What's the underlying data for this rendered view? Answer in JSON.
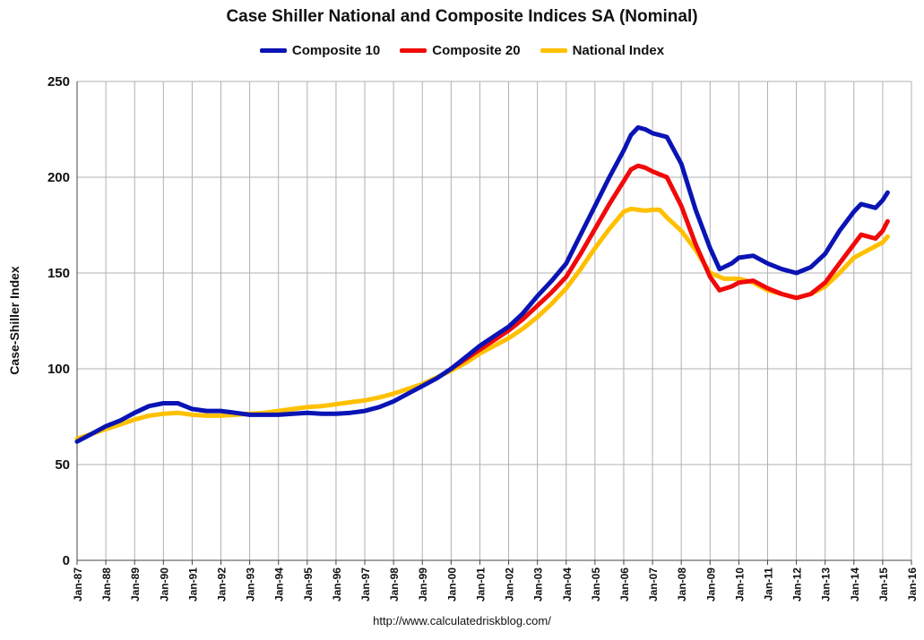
{
  "chart_data": {
    "type": "line",
    "title": "Case Shiller National and Composite Indices SA (Nominal)",
    "ylabel": "Case-Shiller Index",
    "xlabel": "",
    "source": "http://www.calculatedriskblog.com/",
    "ylim": [
      0,
      250
    ],
    "yticks": [
      0,
      50,
      100,
      150,
      200,
      250
    ],
    "xlim": [
      1987,
      2016
    ],
    "xticks": [
      "Jan-87",
      "Jan-88",
      "Jan-89",
      "Jan-90",
      "Jan-91",
      "Jan-92",
      "Jan-93",
      "Jan-94",
      "Jan-95",
      "Jan-96",
      "Jan-97",
      "Jan-98",
      "Jan-99",
      "Jan-00",
      "Jan-01",
      "Jan-02",
      "Jan-03",
      "Jan-04",
      "Jan-05",
      "Jan-06",
      "Jan-07",
      "Jan-08",
      "Jan-09",
      "Jan-10",
      "Jan-11",
      "Jan-12",
      "Jan-13",
      "Jan-14",
      "Jan-15",
      "Jan-16"
    ],
    "grid": true,
    "legend_position": "top",
    "series": [
      {
        "name": "Composite 10",
        "color": "#0a14b4",
        "points": [
          [
            1987.0,
            62
          ],
          [
            1987.5,
            66
          ],
          [
            1988.0,
            70
          ],
          [
            1988.5,
            73
          ],
          [
            1989.0,
            77
          ],
          [
            1989.5,
            80.5
          ],
          [
            1990.0,
            82
          ],
          [
            1990.5,
            82
          ],
          [
            1991.0,
            79
          ],
          [
            1991.5,
            78
          ],
          [
            1992.0,
            78
          ],
          [
            1992.5,
            77
          ],
          [
            1993.0,
            76
          ],
          [
            1993.5,
            76
          ],
          [
            1994.0,
            76
          ],
          [
            1994.5,
            76.5
          ],
          [
            1995.0,
            77
          ],
          [
            1995.5,
            76.5
          ],
          [
            1996.0,
            76.5
          ],
          [
            1996.5,
            77
          ],
          [
            1997.0,
            78
          ],
          [
            1997.5,
            80
          ],
          [
            1998.0,
            83
          ],
          [
            1998.5,
            87
          ],
          [
            1999.0,
            91
          ],
          [
            1999.5,
            95
          ],
          [
            2000.0,
            100
          ],
          [
            2000.5,
            106
          ],
          [
            2001.0,
            112
          ],
          [
            2001.5,
            117
          ],
          [
            2002.0,
            122
          ],
          [
            2002.5,
            129
          ],
          [
            2003.0,
            138
          ],
          [
            2003.5,
            146
          ],
          [
            2004.0,
            155
          ],
          [
            2004.5,
            170
          ],
          [
            2005.0,
            185
          ],
          [
            2005.5,
            200
          ],
          [
            2006.0,
            214
          ],
          [
            2006.25,
            222
          ],
          [
            2006.5,
            226
          ],
          [
            2006.75,
            225
          ],
          [
            2007.0,
            223
          ],
          [
            2007.5,
            221
          ],
          [
            2008.0,
            207
          ],
          [
            2008.5,
            183
          ],
          [
            2009.0,
            163
          ],
          [
            2009.33,
            152
          ],
          [
            2009.75,
            155
          ],
          [
            2010.0,
            158
          ],
          [
            2010.5,
            159
          ],
          [
            2011.0,
            155
          ],
          [
            2011.5,
            152
          ],
          [
            2012.0,
            150
          ],
          [
            2012.5,
            153
          ],
          [
            2013.0,
            160
          ],
          [
            2013.5,
            172
          ],
          [
            2014.0,
            182
          ],
          [
            2014.25,
            186
          ],
          [
            2014.5,
            185
          ],
          [
            2014.75,
            184
          ],
          [
            2015.0,
            188
          ],
          [
            2015.17,
            192
          ]
        ]
      },
      {
        "name": "Composite 20",
        "color": "#f00a0a",
        "points": [
          [
            2000.0,
            100
          ],
          [
            2000.5,
            105
          ],
          [
            2001.0,
            110
          ],
          [
            2001.5,
            115
          ],
          [
            2002.0,
            120
          ],
          [
            2002.5,
            126
          ],
          [
            2003.0,
            133
          ],
          [
            2003.5,
            140
          ],
          [
            2004.0,
            148
          ],
          [
            2004.5,
            160
          ],
          [
            2005.0,
            173
          ],
          [
            2005.5,
            186
          ],
          [
            2006.0,
            198
          ],
          [
            2006.25,
            204
          ],
          [
            2006.5,
            206
          ],
          [
            2006.75,
            205
          ],
          [
            2007.0,
            203
          ],
          [
            2007.5,
            200
          ],
          [
            2008.0,
            185
          ],
          [
            2008.5,
            165
          ],
          [
            2009.0,
            148
          ],
          [
            2009.33,
            141
          ],
          [
            2009.75,
            143
          ],
          [
            2010.0,
            145
          ],
          [
            2010.5,
            146
          ],
          [
            2011.0,
            142
          ],
          [
            2011.5,
            139
          ],
          [
            2012.0,
            137
          ],
          [
            2012.5,
            139
          ],
          [
            2013.0,
            145
          ],
          [
            2013.5,
            155
          ],
          [
            2014.0,
            165
          ],
          [
            2014.25,
            170
          ],
          [
            2014.5,
            169
          ],
          [
            2014.75,
            168
          ],
          [
            2015.0,
            172
          ],
          [
            2015.17,
            177
          ]
        ]
      },
      {
        "name": "National Index",
        "color": "#ffc000",
        "points": [
          [
            1987.0,
            63.5
          ],
          [
            1987.5,
            66
          ],
          [
            1988.0,
            68.5
          ],
          [
            1988.5,
            71
          ],
          [
            1989.0,
            73.5
          ],
          [
            1989.5,
            75.5
          ],
          [
            1990.0,
            76.5
          ],
          [
            1990.5,
            77
          ],
          [
            1991.0,
            76
          ],
          [
            1991.5,
            75.5
          ],
          [
            1992.0,
            75.5
          ],
          [
            1992.5,
            76
          ],
          [
            1993.0,
            76.5
          ],
          [
            1993.5,
            77
          ],
          [
            1994.0,
            78
          ],
          [
            1994.5,
            79
          ],
          [
            1995.0,
            80
          ],
          [
            1995.5,
            80.5
          ],
          [
            1996.0,
            81.5
          ],
          [
            1996.5,
            82.5
          ],
          [
            1997.0,
            83.5
          ],
          [
            1997.5,
            85
          ],
          [
            1998.0,
            87
          ],
          [
            1998.5,
            89.5
          ],
          [
            1999.0,
            92
          ],
          [
            1999.5,
            95.5
          ],
          [
            2000.0,
            99
          ],
          [
            2000.5,
            103
          ],
          [
            2001.0,
            108
          ],
          [
            2001.5,
            112
          ],
          [
            2002.0,
            116
          ],
          [
            2002.5,
            121
          ],
          [
            2003.0,
            127
          ],
          [
            2003.5,
            134
          ],
          [
            2004.0,
            142
          ],
          [
            2004.5,
            152
          ],
          [
            2005.0,
            163
          ],
          [
            2005.5,
            173
          ],
          [
            2006.0,
            182
          ],
          [
            2006.25,
            183.5
          ],
          [
            2006.5,
            183
          ],
          [
            2006.75,
            182.5
          ],
          [
            2007.0,
            183
          ],
          [
            2007.25,
            183
          ],
          [
            2007.5,
            179
          ],
          [
            2008.0,
            172
          ],
          [
            2008.5,
            162
          ],
          [
            2009.0,
            150
          ],
          [
            2009.5,
            147
          ],
          [
            2010.0,
            147
          ],
          [
            2010.5,
            145
          ],
          [
            2011.0,
            141
          ],
          [
            2011.5,
            139
          ],
          [
            2012.0,
            137
          ],
          [
            2012.5,
            139
          ],
          [
            2013.0,
            143
          ],
          [
            2013.5,
            150
          ],
          [
            2014.0,
            158
          ],
          [
            2014.5,
            162
          ],
          [
            2014.75,
            164
          ],
          [
            2015.0,
            166
          ],
          [
            2015.17,
            169
          ]
        ]
      }
    ]
  }
}
